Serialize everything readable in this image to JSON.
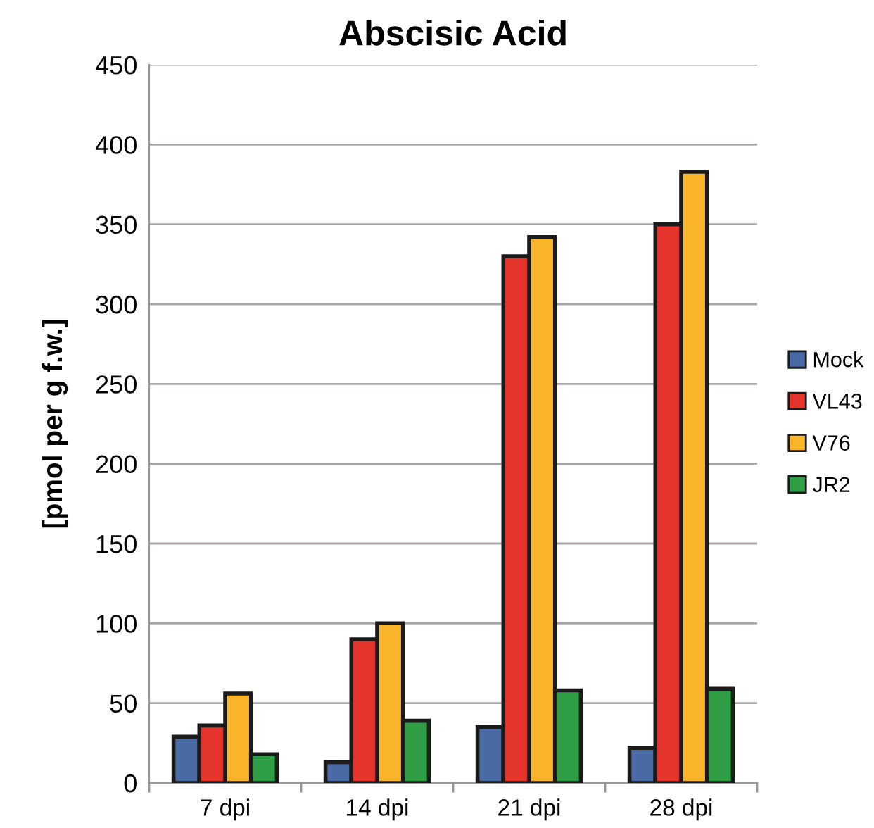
{
  "chart_data": {
    "type": "bar",
    "title": "Abscisic Acid",
    "ylabel": "[pmol per g f.w.]",
    "categories": [
      "7 dpi",
      "14 dpi",
      "21 dpi",
      "28 dpi"
    ],
    "series": [
      {
        "name": "Mock",
        "color": "#4a6aa5",
        "values": [
          29,
          13,
          35,
          22
        ]
      },
      {
        "name": "VL43",
        "color": "#e4342c",
        "values": [
          36,
          90,
          330,
          350
        ]
      },
      {
        "name": "V76",
        "color": "#f9b62a",
        "values": [
          56,
          100,
          342,
          383
        ]
      },
      {
        "name": "JR2",
        "color": "#2f9e44",
        "values": [
          18,
          39,
          58,
          59
        ]
      }
    ],
    "ylim": [
      0,
      450
    ],
    "yticks": [
      0,
      50,
      100,
      150,
      200,
      250,
      300,
      350,
      400,
      450
    ],
    "grid": "y",
    "legend": "right"
  }
}
